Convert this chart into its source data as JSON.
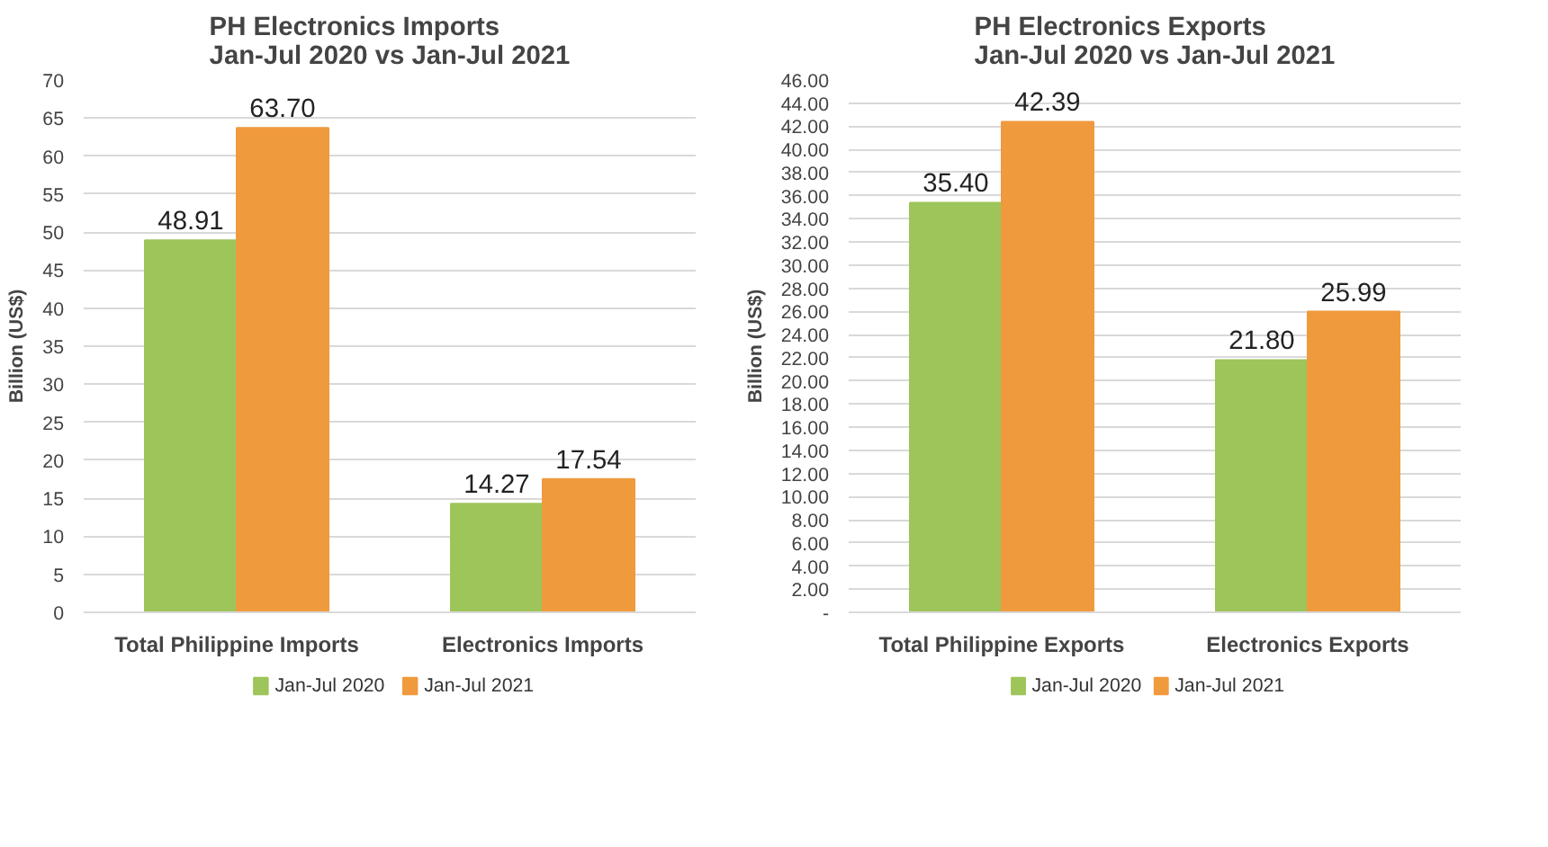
{
  "chart_data": [
    {
      "type": "bar",
      "title": "PH Electronics Imports\nJan-Jul 2020 vs Jan-Jul 2021",
      "ylabel": "Billion (US$)",
      "categories": [
        "Total Philippine Imports",
        "Electronics Imports"
      ],
      "series": [
        {
          "name": "Jan-Jul 2020",
          "color": "#9dc55a",
          "values": [
            48.91,
            14.27
          ],
          "value_labels": [
            "48.91",
            "14.27"
          ]
        },
        {
          "name": "Jan-Jul 2021",
          "color": "#f09a3e",
          "values": [
            63.7,
            17.54
          ],
          "value_labels": [
            "63.70",
            "17.54"
          ]
        }
      ],
      "ylim": [
        0,
        70
      ],
      "yticks": [
        0,
        5,
        10,
        15,
        20,
        25,
        30,
        35,
        40,
        45,
        50,
        55,
        60,
        65,
        70
      ],
      "grid": "y",
      "legend": "bottom"
    },
    {
      "type": "bar",
      "title": "PH Electronics Exports\nJan-Jul 2020 vs Jan-Jul 2021",
      "ylabel": "Billion (US$)",
      "categories": [
        "Total Philippine Exports",
        "Electronics Exports"
      ],
      "series": [
        {
          "name": "Jan-Jul 2020",
          "color": "#9dc55a",
          "values": [
            35.4,
            21.8
          ],
          "value_labels": [
            "35.40",
            "21.80"
          ]
        },
        {
          "name": "Jan-Jul 2021",
          "color": "#f09a3e",
          "values": [
            42.39,
            25.99
          ],
          "value_labels": [
            "42.39",
            "25.99"
          ]
        }
      ],
      "ylim": [
        0,
        46
      ],
      "yticks": [
        {
          "value": 0,
          "label": "-"
        },
        {
          "value": 2,
          "label": "2.00"
        },
        {
          "value": 4,
          "label": "4.00"
        },
        {
          "value": 6,
          "label": "6.00"
        },
        {
          "value": 8,
          "label": "8.00"
        },
        {
          "value": 10,
          "label": "10.00"
        },
        {
          "value": 12,
          "label": "12.00"
        },
        {
          "value": 14,
          "label": "14.00"
        },
        {
          "value": 16,
          "label": "16.00"
        },
        {
          "value": 18,
          "label": "18.00"
        },
        {
          "value": 20,
          "label": "20.00"
        },
        {
          "value": 22,
          "label": "22.00"
        },
        {
          "value": 24,
          "label": "24.00"
        },
        {
          "value": 26,
          "label": "26.00"
        },
        {
          "value": 28,
          "label": "28.00"
        },
        {
          "value": 30,
          "label": "30.00"
        },
        {
          "value": 32,
          "label": "32.00"
        },
        {
          "value": 34,
          "label": "34.00"
        },
        {
          "value": 36,
          "label": "36.00"
        },
        {
          "value": 38,
          "label": "38.00"
        },
        {
          "value": 40,
          "label": "40.00"
        },
        {
          "value": 42,
          "label": "42.00"
        },
        {
          "value": 44,
          "label": "44.00"
        },
        {
          "value": 46,
          "label": "46.00"
        }
      ],
      "grid": "y",
      "legend": "bottom"
    }
  ]
}
